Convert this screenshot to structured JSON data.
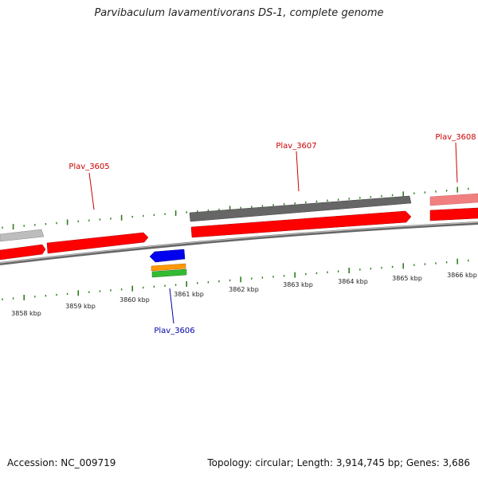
{
  "title": "Parvibaculum lavamentivorans DS-1, complete genome",
  "footer": {
    "accession": "Accession: NC_009719",
    "summary": "Topology: circular; Length: 3,914,745 bp; Genes: 3,686"
  },
  "colors": {
    "forward_gene": "#ff0000",
    "forward_gene_light": "#f08080",
    "reverse_gene": "#0000ee",
    "gray_gene": "#666666",
    "light_gray_gene": "#bdbdbd",
    "tick": "#2e7d1e",
    "backbone": "#808080",
    "forward_label": "#cc0000",
    "reverse_label": "#0000aa",
    "orange_feature": "#ff9900",
    "green_feature": "#33bb33"
  },
  "scale_labels": [
    "3858 kbp",
    "3859 kbp",
    "3860 kbp",
    "3861 kbp",
    "3862 kbp",
    "3863 kbp",
    "3864 kbp",
    "3865 kbp",
    "3866 kbp"
  ],
  "gene_labels": [
    {
      "text": "Plav_3605",
      "strand": "forward"
    },
    {
      "text": "Plav_3606",
      "strand": "reverse"
    },
    {
      "text": "Plav_3607",
      "strand": "forward"
    },
    {
      "text": "Plav_3608",
      "strand": "forward"
    }
  ]
}
